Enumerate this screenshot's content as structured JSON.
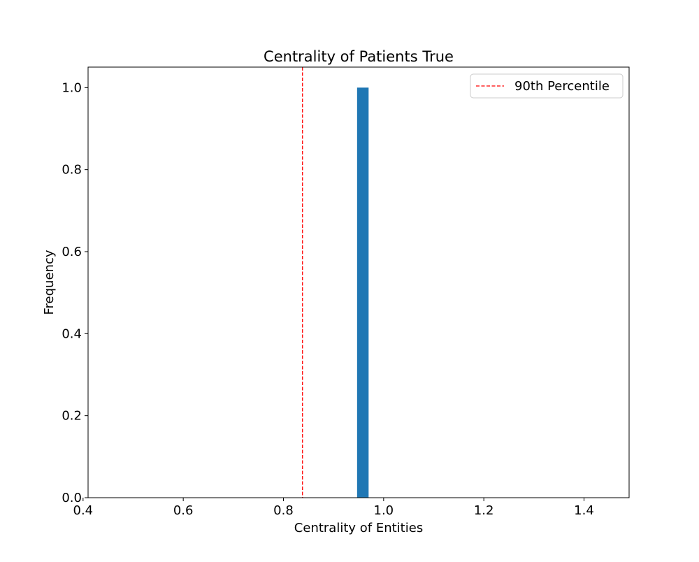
{
  "chart_data": {
    "type": "bar",
    "title": "Centrality of Patients True",
    "xlabel": "Centrality of Entities",
    "ylabel": "Frequency",
    "xlim": [
      0.41,
      1.49
    ],
    "ylim": [
      0.0,
      1.05
    ],
    "xticks": [
      0.4,
      0.6,
      0.8,
      1.0,
      1.2,
      1.4
    ],
    "xtick_labels": [
      "0.4",
      "0.6",
      "0.8",
      "1.0",
      "1.2",
      "1.4"
    ],
    "yticks": [
      0.0,
      0.2,
      0.4,
      0.6,
      0.8,
      1.0
    ],
    "ytick_labels": [
      "0.0",
      "0.2",
      "0.4",
      "0.6",
      "0.8",
      "1.0"
    ],
    "bars": [
      {
        "x_start": 0.947,
        "x_end": 0.97,
        "value": 1.0
      }
    ],
    "reference_lines": [
      {
        "label": "90th Percentile",
        "x": 0.838,
        "style": "dashed",
        "color": "#ff0000"
      }
    ],
    "legend": {
      "position": "top-right",
      "entries": [
        "90th Percentile"
      ]
    },
    "grid": false,
    "colors": {
      "bar": "#1f77b4",
      "reference_line": "#ff0000"
    }
  }
}
